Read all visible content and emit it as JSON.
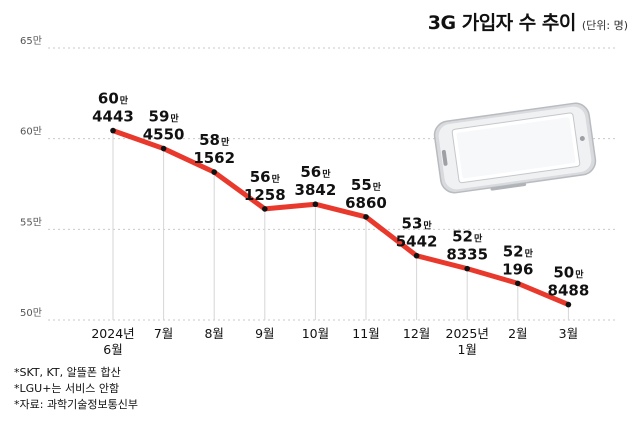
{
  "header": {
    "title": "3G 가입자 수 추이",
    "unit": "(단위: 명)"
  },
  "colors": {
    "line": "#e8392c",
    "point": "#111111",
    "grid": "#c9c9c9",
    "vline": "#d6d6d6"
  },
  "chart_data": {
    "type": "line",
    "title": "3G 가입자 수 추이",
    "unit": "(단위: 명)",
    "ylim": [
      500000,
      650000
    ],
    "yticks": [
      {
        "value": 650000,
        "label": "65만"
      },
      {
        "value": 600000,
        "label": "60만"
      },
      {
        "value": 550000,
        "label": "55만"
      },
      {
        "value": 500000,
        "label": "50만"
      }
    ],
    "grid": true,
    "categories": [
      [
        "2024년",
        "6월"
      ],
      [
        "7월"
      ],
      [
        "8월"
      ],
      [
        "9월"
      ],
      [
        "10월"
      ],
      [
        "11월"
      ],
      [
        "12월"
      ],
      [
        "2025년",
        "1월"
      ],
      [
        "2월"
      ],
      [
        "3월"
      ]
    ],
    "values": [
      604443,
      594550,
      581562,
      561258,
      563842,
      556860,
      535442,
      528335,
      520196,
      508488
    ],
    "labels": [
      {
        "top": "60",
        "unit": "만",
        "bottom": "4443"
      },
      {
        "top": "59",
        "unit": "만",
        "bottom": "4550"
      },
      {
        "top": "58",
        "unit": "만",
        "bottom": "1562"
      },
      {
        "top": "56",
        "unit": "만",
        "bottom": "1258"
      },
      {
        "top": "56",
        "unit": "만",
        "bottom": "3842"
      },
      {
        "top": "55",
        "unit": "만",
        "bottom": "6860"
      },
      {
        "top": "53",
        "unit": "만",
        "bottom": "5442"
      },
      {
        "top": "52",
        "unit": "만",
        "bottom": "8335"
      },
      {
        "top": "52",
        "unit": "만",
        "bottom": "196"
      },
      {
        "top": "50",
        "unit": "만",
        "bottom": "8488"
      }
    ]
  },
  "notes": [
    "*SKT, KT, 알뜰폰 합산",
    "*LGU+는 서비스 안함",
    "*자료: 과학기술정보통신부"
  ],
  "illustration": {
    "icon": "smartphone-icon"
  }
}
